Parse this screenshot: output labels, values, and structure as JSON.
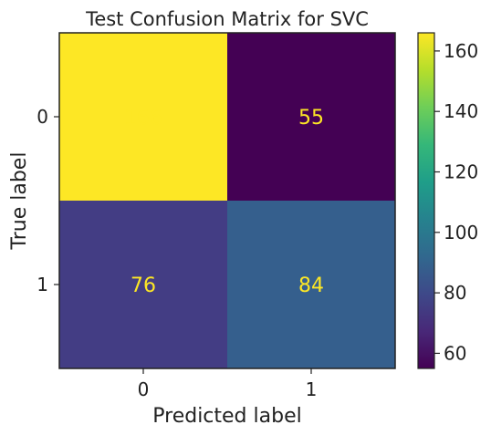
{
  "chart_data": {
    "type": "heatmap",
    "title": "Test Confusion Matrix for SVC",
    "xlabel": "Predicted label",
    "ylabel": "True label",
    "x_categories": [
      "0",
      "1"
    ],
    "y_categories": [
      "0",
      "1"
    ],
    "values": [
      [
        166,
        55
      ],
      [
        76,
        84
      ]
    ],
    "colormap": "viridis",
    "colorbar": {
      "range": [
        55,
        166
      ],
      "ticks": [
        60,
        80,
        100,
        120,
        140,
        160
      ],
      "tick_labels": [
        "60",
        "80",
        "100",
        "120",
        "140",
        "160"
      ]
    },
    "cell_colors": [
      [
        "#fde725",
        "#440154"
      ],
      [
        "#433d84",
        "#355f8d"
      ]
    ],
    "text_color": "#fde725",
    "grid": false
  }
}
